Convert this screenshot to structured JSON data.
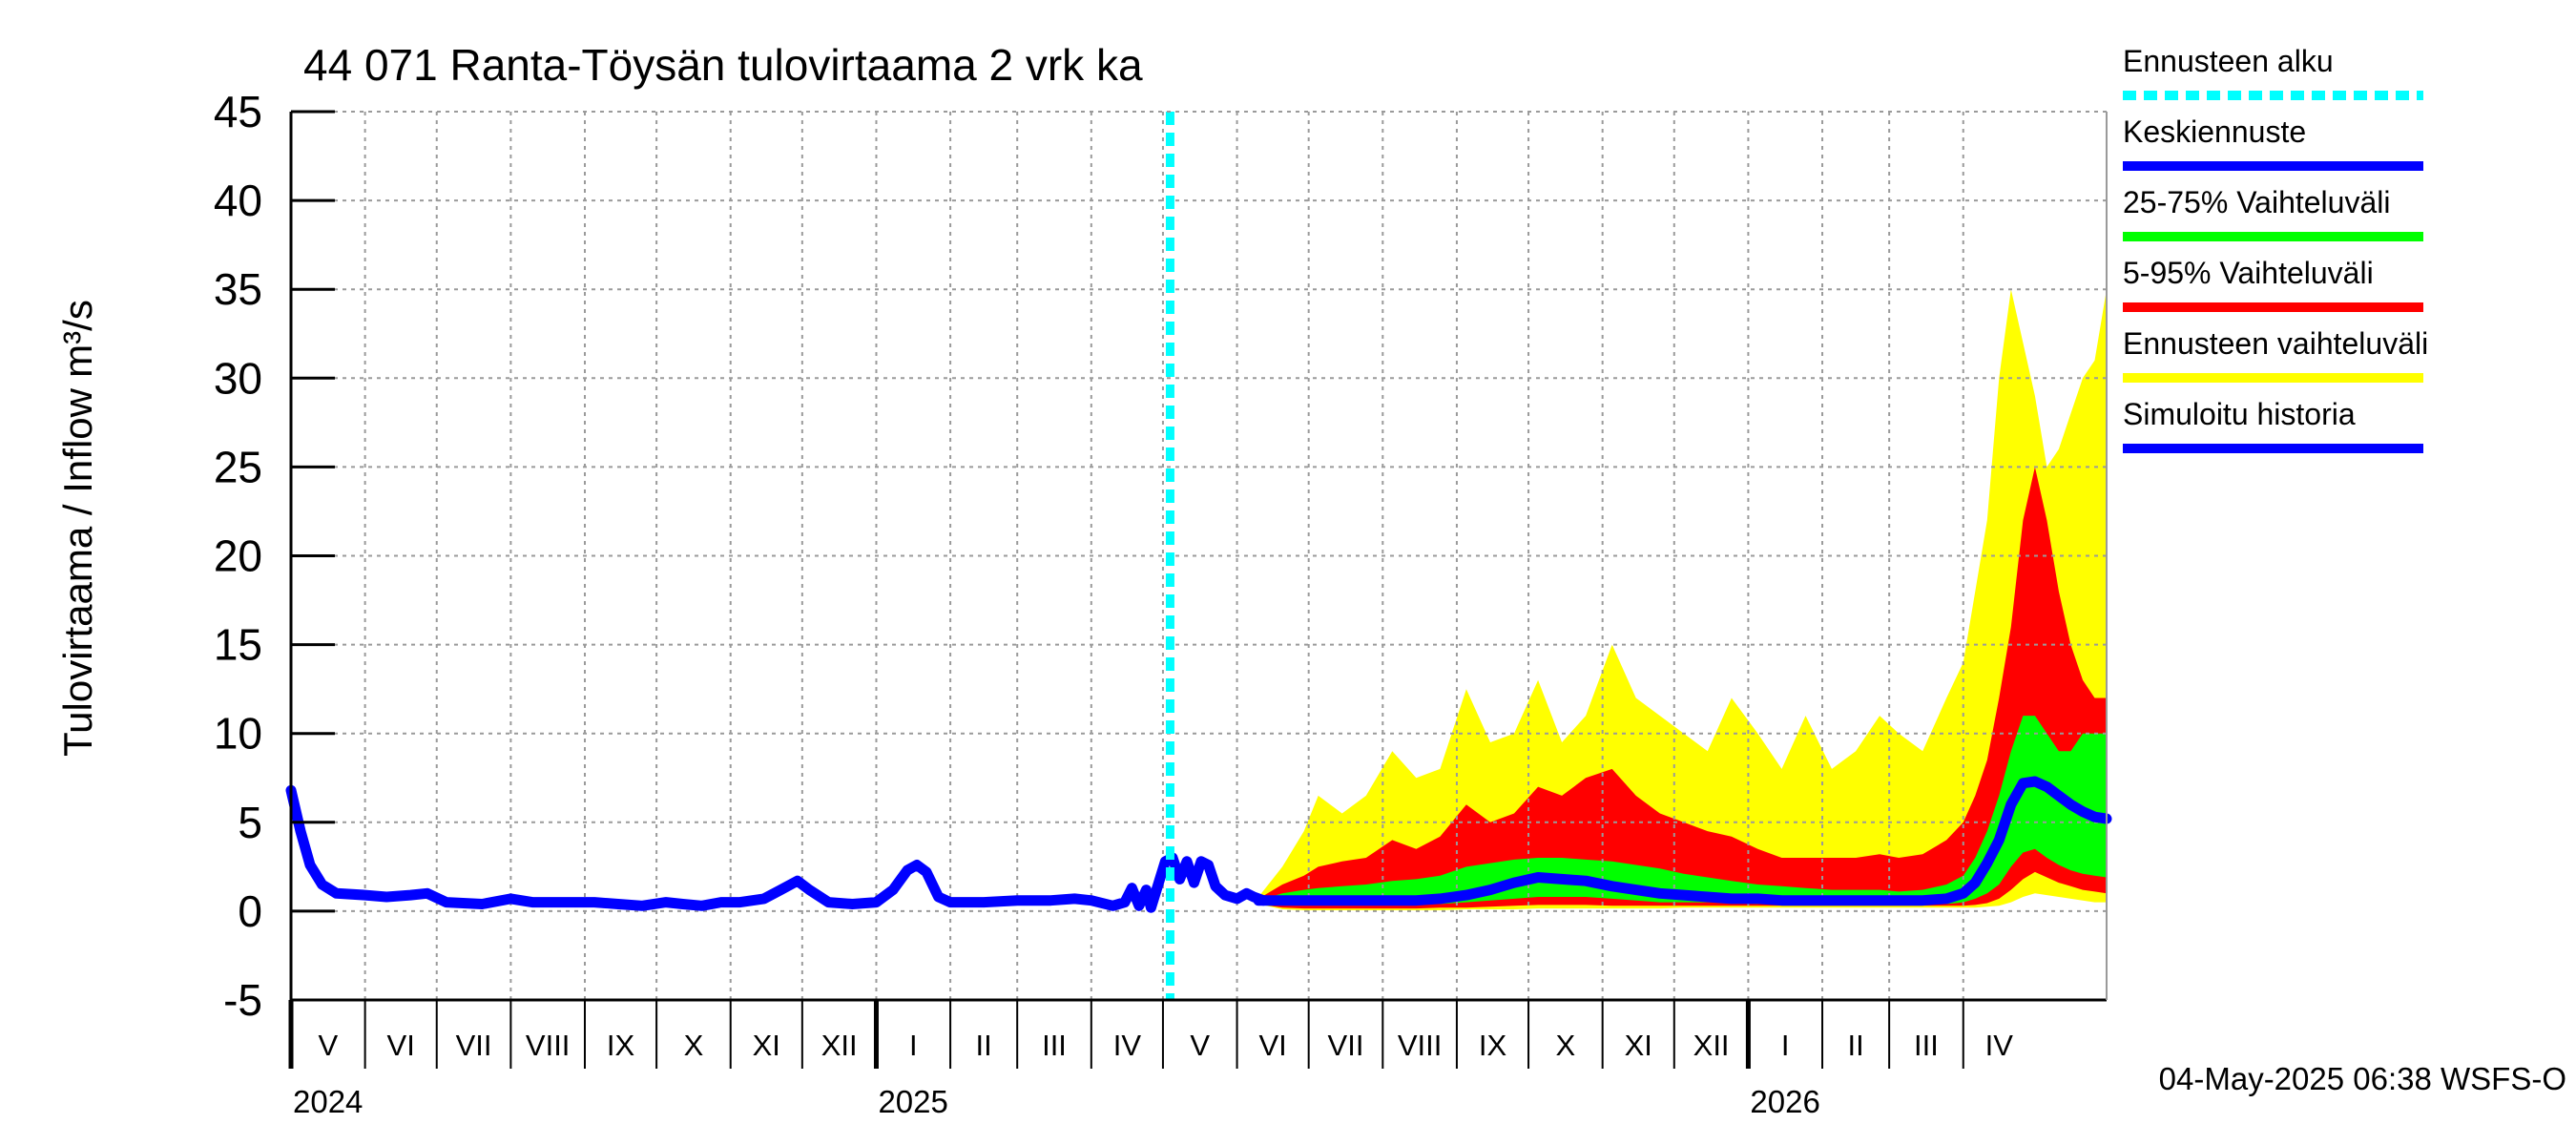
{
  "chart_data": {
    "type": "area",
    "title": "44 071 Ranta-Töysän tulovirtaama 2 vrk ka",
    "ylabel": "Tulovirtaama / Inflow",
    "yunit": "m³/s",
    "ylim": [
      -5,
      45
    ],
    "yticks": [
      -5,
      0,
      5,
      10,
      15,
      20,
      25,
      30,
      35,
      40,
      45
    ],
    "x_start": "2024-05-01",
    "x_end": "2026-05-31",
    "grid": true,
    "months": [
      {
        "label": "V",
        "start": "2024-05-01",
        "end": "2024-05-31"
      },
      {
        "label": "VI",
        "start": "2024-06-01",
        "end": "2024-06-30"
      },
      {
        "label": "VII",
        "start": "2024-07-01",
        "end": "2024-07-31"
      },
      {
        "label": "VIII",
        "start": "2024-08-01",
        "end": "2024-08-31"
      },
      {
        "label": "IX",
        "start": "2024-09-01",
        "end": "2024-09-30"
      },
      {
        "label": "X",
        "start": "2024-10-01",
        "end": "2024-10-31"
      },
      {
        "label": "XI",
        "start": "2024-11-01",
        "end": "2024-11-30"
      },
      {
        "label": "XII",
        "start": "2024-12-01",
        "end": "2024-12-31"
      },
      {
        "label": "I",
        "start": "2025-01-01",
        "end": "2025-01-31"
      },
      {
        "label": "II",
        "start": "2025-02-01",
        "end": "2025-02-28"
      },
      {
        "label": "III",
        "start": "2025-03-01",
        "end": "2025-03-31"
      },
      {
        "label": "IV",
        "start": "2025-04-01",
        "end": "2025-04-30"
      },
      {
        "label": "V",
        "start": "2025-05-01",
        "end": "2025-05-31"
      },
      {
        "label": "VI",
        "start": "2025-06-01",
        "end": "2025-06-30"
      },
      {
        "label": "VII",
        "start": "2025-07-01",
        "end": "2025-07-31"
      },
      {
        "label": "VIII",
        "start": "2025-08-01",
        "end": "2025-08-31"
      },
      {
        "label": "IX",
        "start": "2025-09-01",
        "end": "2025-09-30"
      },
      {
        "label": "X",
        "start": "2025-10-01",
        "end": "2025-10-31"
      },
      {
        "label": "XI",
        "start": "2025-11-01",
        "end": "2025-11-30"
      },
      {
        "label": "XII",
        "start": "2025-12-01",
        "end": "2025-12-31"
      },
      {
        "label": "I",
        "start": "2026-01-01",
        "end": "2026-01-31"
      },
      {
        "label": "II",
        "start": "2026-02-01",
        "end": "2026-02-28"
      },
      {
        "label": "III",
        "start": "2026-03-01",
        "end": "2026-03-31"
      },
      {
        "label": "IV",
        "start": "2026-04-01",
        "end": "2026-04-30"
      }
    ],
    "years": [
      {
        "label": "2024",
        "date": "2024-05-01"
      },
      {
        "label": "2025",
        "date": "2025-01-01"
      },
      {
        "label": "2026",
        "date": "2026-01-01"
      }
    ],
    "forecast_start": "2025-05-04",
    "history": {
      "name": "Simuloitu historia",
      "color": "#0000ff",
      "points": [
        [
          "2024-05-01",
          6.8
        ],
        [
          "2024-05-05",
          4.5
        ],
        [
          "2024-05-09",
          2.6
        ],
        [
          "2024-05-14",
          1.5
        ],
        [
          "2024-05-20",
          1.0
        ],
        [
          "2024-06-01",
          0.9
        ],
        [
          "2024-06-10",
          0.8
        ],
        [
          "2024-06-20",
          0.9
        ],
        [
          "2024-06-27",
          1.0
        ],
        [
          "2024-07-05",
          0.5
        ],
        [
          "2024-07-20",
          0.4
        ],
        [
          "2024-08-01",
          0.7
        ],
        [
          "2024-08-10",
          0.5
        ],
        [
          "2024-08-25",
          0.5
        ],
        [
          "2024-09-05",
          0.5
        ],
        [
          "2024-09-15",
          0.4
        ],
        [
          "2024-09-25",
          0.3
        ],
        [
          "2024-10-05",
          0.5
        ],
        [
          "2024-10-12",
          0.4
        ],
        [
          "2024-10-20",
          0.3
        ],
        [
          "2024-10-28",
          0.5
        ],
        [
          "2024-11-05",
          0.5
        ],
        [
          "2024-11-15",
          0.7
        ],
        [
          "2024-11-22",
          1.2
        ],
        [
          "2024-11-29",
          1.7
        ],
        [
          "2024-12-04",
          1.2
        ],
        [
          "2024-12-12",
          0.5
        ],
        [
          "2024-12-22",
          0.4
        ],
        [
          "2025-01-01",
          0.5
        ],
        [
          "2025-01-08",
          1.2
        ],
        [
          "2025-01-14",
          2.3
        ],
        [
          "2025-01-18",
          2.6
        ],
        [
          "2025-01-22",
          2.2
        ],
        [
          "2025-01-27",
          0.8
        ],
        [
          "2025-02-01",
          0.5
        ],
        [
          "2025-02-15",
          0.5
        ],
        [
          "2025-03-01",
          0.6
        ],
        [
          "2025-03-15",
          0.6
        ],
        [
          "2025-03-25",
          0.7
        ],
        [
          "2025-04-01",
          0.6
        ],
        [
          "2025-04-10",
          0.3
        ],
        [
          "2025-04-15",
          0.5
        ],
        [
          "2025-04-18",
          1.3
        ],
        [
          "2025-04-21",
          0.3
        ],
        [
          "2025-04-24",
          1.2
        ],
        [
          "2025-04-26",
          0.2
        ],
        [
          "2025-04-29",
          1.5
        ],
        [
          "2025-05-02",
          2.8
        ],
        [
          "2025-05-05",
          3.0
        ],
        [
          "2025-05-08",
          1.8
        ],
        [
          "2025-05-11",
          2.8
        ],
        [
          "2025-05-14",
          1.6
        ],
        [
          "2025-05-17",
          2.8
        ],
        [
          "2025-05-20",
          2.6
        ],
        [
          "2025-05-23",
          1.4
        ],
        [
          "2025-05-27",
          0.9
        ],
        [
          "2025-06-01",
          0.7
        ],
        [
          "2025-06-05",
          1.0
        ],
        [
          "2025-06-08",
          0.8
        ],
        [
          "2025-06-12",
          0.6
        ]
      ]
    },
    "forecast": {
      "dates": [
        "2025-06-10",
        "2025-06-20",
        "2025-06-29",
        "2025-07-05",
        "2025-07-15",
        "2025-07-25",
        "2025-08-05",
        "2025-08-15",
        "2025-08-25",
        "2025-09-05",
        "2025-09-15",
        "2025-09-25",
        "2025-10-05",
        "2025-10-15",
        "2025-10-25",
        "2025-11-05",
        "2025-11-15",
        "2025-11-25",
        "2025-12-05",
        "2025-12-15",
        "2025-12-25",
        "2026-01-05",
        "2026-01-15",
        "2026-01-25",
        "2026-02-05",
        "2026-02-15",
        "2026-02-25",
        "2026-03-05",
        "2026-03-15",
        "2026-03-25",
        "2026-04-01",
        "2026-04-06",
        "2026-04-11",
        "2026-04-16",
        "2026-04-21",
        "2026-04-26",
        "2026-05-01",
        "2026-05-06",
        "2026-05-11",
        "2026-05-16",
        "2026-05-21",
        "2026-05-26",
        "2026-05-31"
      ],
      "env_max": [
        0.8,
        2.5,
        4.5,
        6.5,
        5.5,
        6.5,
        9.0,
        7.5,
        8.0,
        12.5,
        9.5,
        10.0,
        13.0,
        9.5,
        11.0,
        15.0,
        12.0,
        11.0,
        10.0,
        9.0,
        12.0,
        10.0,
        8.0,
        11.0,
        8.0,
        9.0,
        11.0,
        10.0,
        9.0,
        12.0,
        14.0,
        18.0,
        22.0,
        30.0,
        35.0,
        32.0,
        29.0,
        25.0,
        26.0,
        28.0,
        30.0,
        31.0,
        35.0
      ],
      "p95": [
        0.7,
        1.5,
        2.0,
        2.5,
        2.8,
        3.0,
        4.0,
        3.5,
        4.2,
        6.0,
        5.0,
        5.5,
        7.0,
        6.5,
        7.5,
        8.0,
        6.5,
        5.5,
        5.0,
        4.5,
        4.2,
        3.5,
        3.0,
        3.0,
        3.0,
        3.0,
        3.2,
        3.0,
        3.2,
        4.0,
        5.0,
        6.5,
        8.5,
        12.0,
        16.0,
        22.0,
        25.0,
        22.0,
        18.0,
        15.0,
        13.0,
        12.0,
        12.0
      ],
      "p75": [
        0.6,
        1.0,
        1.2,
        1.3,
        1.4,
        1.5,
        1.7,
        1.8,
        2.0,
        2.5,
        2.7,
        2.9,
        3.0,
        3.0,
        2.9,
        2.8,
        2.6,
        2.4,
        2.1,
        1.9,
        1.7,
        1.5,
        1.4,
        1.3,
        1.2,
        1.2,
        1.2,
        1.1,
        1.2,
        1.5,
        2.0,
        3.0,
        4.5,
        6.5,
        9.0,
        11.0,
        11.0,
        10.0,
        9.0,
        9.0,
        10.0,
        10.0,
        10.0
      ],
      "median": [
        0.6,
        0.6,
        0.6,
        0.6,
        0.6,
        0.6,
        0.6,
        0.6,
        0.7,
        0.9,
        1.2,
        1.6,
        1.9,
        1.8,
        1.7,
        1.4,
        1.2,
        1.0,
        0.9,
        0.8,
        0.7,
        0.7,
        0.6,
        0.6,
        0.6,
        0.6,
        0.6,
        0.6,
        0.6,
        0.7,
        1.0,
        1.6,
        2.7,
        4.0,
        6.0,
        7.2,
        7.3,
        7.0,
        6.5,
        6.0,
        5.6,
        5.3,
        5.2
      ],
      "p25": [
        0.5,
        0.4,
        0.4,
        0.4,
        0.4,
        0.4,
        0.4,
        0.4,
        0.4,
        0.5,
        0.6,
        0.7,
        0.8,
        0.8,
        0.8,
        0.7,
        0.6,
        0.5,
        0.5,
        0.5,
        0.5,
        0.4,
        0.4,
        0.4,
        0.4,
        0.4,
        0.4,
        0.4,
        0.4,
        0.4,
        0.5,
        0.7,
        1.0,
        1.5,
        2.5,
        3.3,
        3.5,
        3.0,
        2.6,
        2.3,
        2.1,
        2.0,
        1.9
      ],
      "p05": [
        0.4,
        0.2,
        0.15,
        0.15,
        0.15,
        0.15,
        0.15,
        0.15,
        0.2,
        0.2,
        0.25,
        0.3,
        0.35,
        0.35,
        0.35,
        0.3,
        0.3,
        0.3,
        0.3,
        0.3,
        0.3,
        0.3,
        0.3,
        0.3,
        0.3,
        0.3,
        0.3,
        0.3,
        0.3,
        0.3,
        0.3,
        0.35,
        0.45,
        0.7,
        1.2,
        1.8,
        2.2,
        1.9,
        1.6,
        1.4,
        1.2,
        1.1,
        1.0
      ],
      "env_min": [
        0.4,
        0.1,
        0.05,
        0.05,
        0.05,
        0.05,
        0.05,
        0.05,
        0.05,
        0.1,
        0.1,
        0.1,
        0.15,
        0.15,
        0.15,
        0.15,
        0.15,
        0.15,
        0.2,
        0.2,
        0.2,
        0.2,
        0.2,
        0.2,
        0.2,
        0.2,
        0.2,
        0.2,
        0.2,
        0.2,
        0.2,
        0.2,
        0.25,
        0.3,
        0.5,
        0.8,
        1.0,
        0.9,
        0.8,
        0.7,
        0.6,
        0.5,
        0.5
      ]
    },
    "legend": [
      {
        "label": "Ennusteen alku",
        "color": "#00ffff",
        "style": "dashed"
      },
      {
        "label": "Keskiennuste",
        "color": "#0000ff",
        "style": "solid"
      },
      {
        "label": "25-75% Vaihteluväli",
        "color": "#00ff00",
        "style": "solid"
      },
      {
        "label": "5-95% Vaihteluväli",
        "color": "#ff0000",
        "style": "solid"
      },
      {
        "label": "Ennusteen vaihteluväli",
        "color": "#ffff00",
        "style": "solid"
      },
      {
        "label": "Simuloitu historia",
        "color": "#0000ff",
        "style": "solid"
      }
    ],
    "legend_position": "right",
    "footer": "04-May-2025 06:38 WSFS-O"
  }
}
